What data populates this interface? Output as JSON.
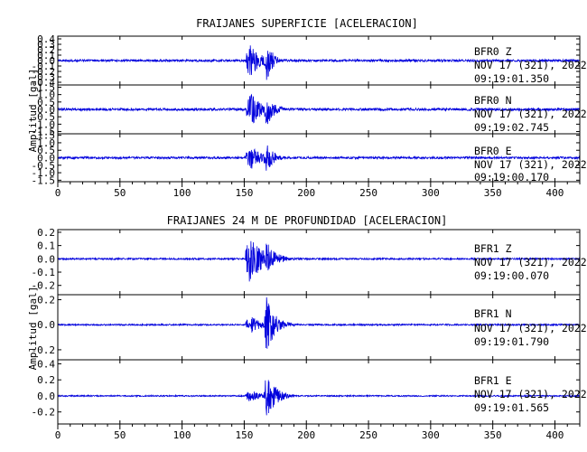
{
  "chart_data": [
    {
      "type": "line",
      "title": "FRAIJANES SUPERFICIE [ACELERACION]",
      "ylabel": "Amplitud [gal]",
      "xlabel": "",
      "xlim": [
        0,
        420
      ],
      "x_ticks": [
        0,
        50,
        100,
        150,
        200,
        250,
        300,
        350,
        400
      ],
      "line_color": "#0000dd",
      "grid": false,
      "traces": [
        {
          "station": "BFR0   Z",
          "date": "NOV 17 (321), 2022",
          "time": "09:19:01.350",
          "ylim": [
            -0.45,
            0.45
          ],
          "y_ticks": [
            -0.4,
            -0.3,
            -0.2,
            -0.1,
            0.0,
            0.1,
            0.2,
            0.3,
            0.4
          ],
          "y_tick_labels": [
            "-0.4",
            "-0.3",
            "-0.2",
            "-0.1",
            "0.0",
            "0.1",
            "0.2",
            "0.3",
            "0.4"
          ],
          "noise_amplitude": 0.02,
          "event": [
            {
              "start": 151,
              "peak_time": 155,
              "peak_amplitude": 0.34,
              "decay": 8
            },
            {
              "start": 166,
              "peak_time": 168,
              "peak_amplitude": 0.4,
              "decay": 5
            }
          ],
          "end_decay_seconds": 45
        },
        {
          "station": "BFR0   N",
          "date": "NOV 17 (321), 2022",
          "time": "09:19:02.745",
          "ylim": [
            -1.65,
            1.65
          ],
          "y_ticks": [
            -1.5,
            -1.0,
            -0.5,
            0.0,
            0.5,
            1.0,
            1.5
          ],
          "y_tick_labels": [
            "-1.5",
            "-1.0",
            "-0.5",
            "0.0",
            "0.5",
            "1.0",
            "1.5"
          ],
          "noise_amplitude": 0.08,
          "event": [
            {
              "start": 151,
              "peak_time": 156,
              "peak_amplitude": 1.1,
              "decay": 9
            },
            {
              "start": 166,
              "peak_time": 168,
              "peak_amplitude": 1.2,
              "decay": 6
            }
          ],
          "end_decay_seconds": 45
        },
        {
          "station": "BFR0   E",
          "date": "NOV 17 (321), 2022",
          "time": "09:19:00.170",
          "ylim": [
            -1.6,
            1.6
          ],
          "y_ticks": [
            -1.5,
            -1.0,
            -0.5,
            0.0,
            0.5,
            1.0,
            1.5
          ],
          "y_tick_labels": [
            "-1.5",
            "-1.0",
            "-0.5",
            "0.0",
            "0.5",
            "1.0",
            "1.5"
          ],
          "noise_amplitude": 0.07,
          "event": [
            {
              "start": 151,
              "peak_time": 156,
              "peak_amplitude": 0.8,
              "decay": 8
            },
            {
              "start": 166,
              "peak_time": 168,
              "peak_amplitude": 1.0,
              "decay": 6
            }
          ],
          "end_decay_seconds": 45
        }
      ]
    },
    {
      "type": "line",
      "title": "FRAIJANES 24 M DE PROFUNDIDAD [ACELERACION]",
      "ylabel": "Amplitud [gal]",
      "xlabel": "",
      "xlim": [
        0,
        420
      ],
      "x_ticks": [
        0,
        50,
        100,
        150,
        200,
        250,
        300,
        350,
        400
      ],
      "line_color": "#0000dd",
      "grid": false,
      "traces": [
        {
          "station": "BFR1   Z",
          "date": "NOV 17 (321), 2022",
          "time": "09:19:00.070",
          "ylim": [
            -0.27,
            0.22
          ],
          "y_ticks": [
            -0.2,
            -0.1,
            0.0,
            0.1,
            0.2
          ],
          "y_tick_labels": [
            "-0.2",
            "-0.1",
            "0.0",
            "0.1",
            "0.2"
          ],
          "noise_amplitude": 0.006,
          "event": [
            {
              "start": 151,
              "peak_time": 154,
              "peak_amplitude": 0.19,
              "decay": 12
            },
            {
              "start": 166,
              "peak_time": 168,
              "peak_amplitude": 0.13,
              "decay": 8
            }
          ],
          "end_decay_seconds": 45
        },
        {
          "station": "BFR1   N",
          "date": "NOV 17 (321), 2022",
          "time": "09:19:01.790",
          "ylim": [
            -0.28,
            0.24
          ],
          "y_ticks": [
            -0.2,
            0.0,
            0.2
          ],
          "y_tick_labels": [
            "-0.2",
            "0.0",
            "0.2"
          ],
          "noise_amplitude": 0.006,
          "event": [
            {
              "start": 151,
              "peak_time": 155,
              "peak_amplitude": 0.07,
              "decay": 10
            },
            {
              "start": 166,
              "peak_time": 168,
              "peak_amplitude": 0.23,
              "decay": 7
            }
          ],
          "end_decay_seconds": 45
        },
        {
          "station": "BFR1   E",
          "date": "NOV 17 (321), 2022",
          "time": "09:19:01.565",
          "ylim": [
            -0.35,
            0.45
          ],
          "y_ticks": [
            -0.2,
            0.0,
            0.2,
            0.4
          ],
          "y_tick_labels": [
            "-0.2",
            "0.0",
            "0.2",
            "0.4"
          ],
          "noise_amplitude": 0.008,
          "event": [
            {
              "start": 151,
              "peak_time": 155,
              "peak_amplitude": 0.08,
              "decay": 8
            },
            {
              "start": 166,
              "peak_time": 168,
              "peak_amplitude": 0.32,
              "decay": 7
            }
          ],
          "end_decay_seconds": 45
        }
      ]
    }
  ]
}
